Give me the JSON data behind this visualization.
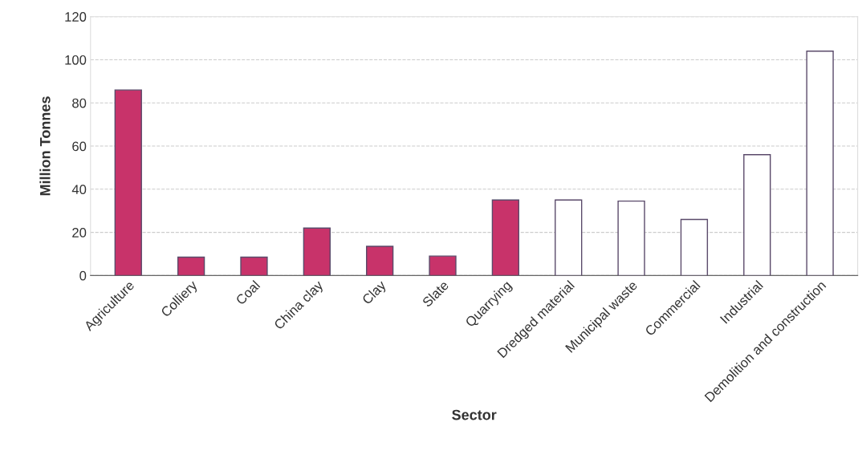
{
  "chart_data": {
    "type": "bar",
    "xlabel": "Sector",
    "ylabel": "Million Tonnes",
    "categories": [
      "Agriculture",
      "Colliery",
      "Coal",
      "China clay",
      "Clay",
      "Slate",
      "Quarrying",
      "Dredged material",
      "Municipal waste",
      "Commercial",
      "Industrial",
      "Demolition and construction"
    ],
    "values": [
      86,
      8.5,
      8.5,
      22,
      13.5,
      9,
      35,
      35,
      34.5,
      26,
      56,
      104
    ],
    "colors": [
      "#c8336a",
      "#c8336a",
      "#c8336a",
      "#c8336a",
      "#c8336a",
      "#c8336a",
      "#c8336a",
      "#ffffff",
      "#ffffff",
      "#ffffff",
      "#ffffff",
      "#ffffff"
    ],
    "ylim": [
      0,
      120
    ],
    "yticks": [
      0,
      20,
      40,
      60,
      80,
      100,
      120
    ],
    "grid": "y"
  }
}
